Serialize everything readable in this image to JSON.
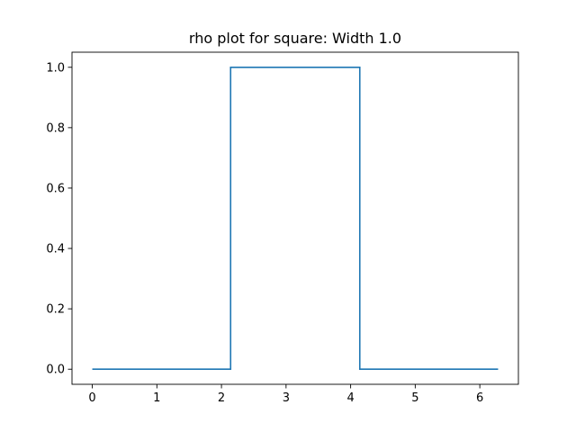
{
  "chart_data": {
    "type": "line",
    "title": "rho plot for square: Width 1.0",
    "xlabel": "",
    "ylabel": "",
    "x": [
      0,
      2.1416,
      2.1416,
      4.1416,
      4.1416,
      6.2832
    ],
    "series": [
      {
        "values": [
          0.0,
          0.0,
          1.0,
          1.0,
          0.0,
          0.0
        ],
        "color": "#1f77b4"
      }
    ],
    "xlim": [
      -0.3142,
      6.5973
    ],
    "ylim": [
      -0.05,
      1.05
    ],
    "xticks": [
      0,
      1,
      2,
      3,
      4,
      5,
      6
    ],
    "xtick_labels": [
      "0",
      "1",
      "2",
      "3",
      "4",
      "5",
      "6"
    ],
    "yticks": [
      0.0,
      0.2,
      0.4,
      0.6,
      0.8,
      1.0
    ],
    "ytick_labels": [
      "0.0",
      "0.2",
      "0.4",
      "0.6",
      "0.8",
      "1.0"
    ],
    "grid": false,
    "legend": "none"
  }
}
